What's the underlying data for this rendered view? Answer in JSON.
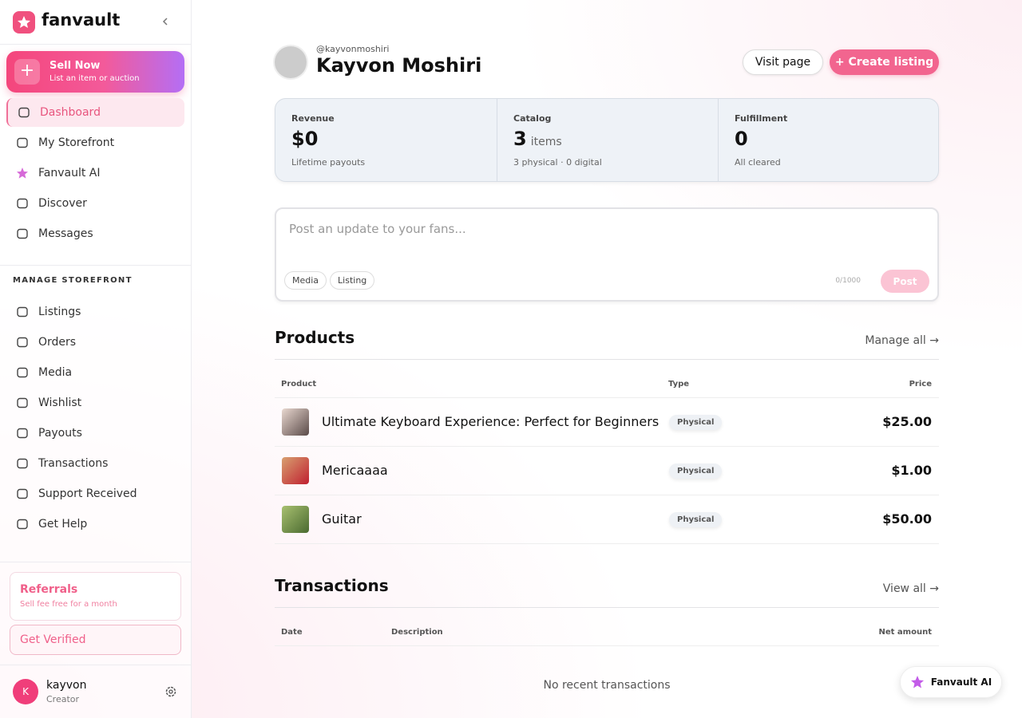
{
  "sidebar": {
    "brand": "fanvault",
    "sell": {
      "title": "Sell Now",
      "subtitle": "List an item or auction"
    },
    "nav": [
      "Dashboard",
      "My Storefront",
      "Fanvault AI",
      "Discover",
      "Messages"
    ],
    "section_label": "MANAGE STOREFRONT",
    "manage": [
      "Listings",
      "Orders",
      "Media",
      "Wishlist",
      "Payouts",
      "Transactions",
      "Support Received",
      "Get Help"
    ],
    "referrals": {
      "title": "Referrals",
      "subtitle": "Sell fee free for a month"
    },
    "verify": "Get Verified",
    "user": {
      "initial": "K",
      "name": "kayvon",
      "role": "Creator"
    }
  },
  "header": {
    "handle": "@kayvonmoshiri",
    "name": "Kayvon Moshiri",
    "visit": "Visit page",
    "create": "+ Create listing"
  },
  "stats": [
    {
      "label": "Revenue",
      "value": "$0",
      "note": "Lifetime payouts"
    },
    {
      "label": "Catalog",
      "value": "3",
      "unit": "items",
      "note": "3 physical · 0 digital"
    },
    {
      "label": "Fulfillment",
      "value": "0",
      "note": "All cleared"
    }
  ],
  "composer": {
    "placeholder": "Post an update to your fans...",
    "buttons": [
      "Media",
      "Listing"
    ],
    "counter": "0/1000",
    "post": "Post"
  },
  "products": {
    "title": "Products",
    "link": "Manage all →",
    "columns": [
      "Product",
      "Type",
      "Price"
    ],
    "rows": [
      [
        "Ultimate Keyboard Experience: Perfect for Beginners",
        "Physical",
        "$25.00"
      ],
      [
        "Mericaaaa",
        "Physical",
        "$1.00"
      ],
      [
        "Guitar",
        "Physical",
        "$50.00"
      ]
    ]
  },
  "transactions": {
    "title": "Transactions",
    "link": "View all →",
    "columns": [
      "Date",
      "Description",
      "Net amount"
    ],
    "empty": "No recent transactions"
  },
  "assistant": "Fanvault AI"
}
